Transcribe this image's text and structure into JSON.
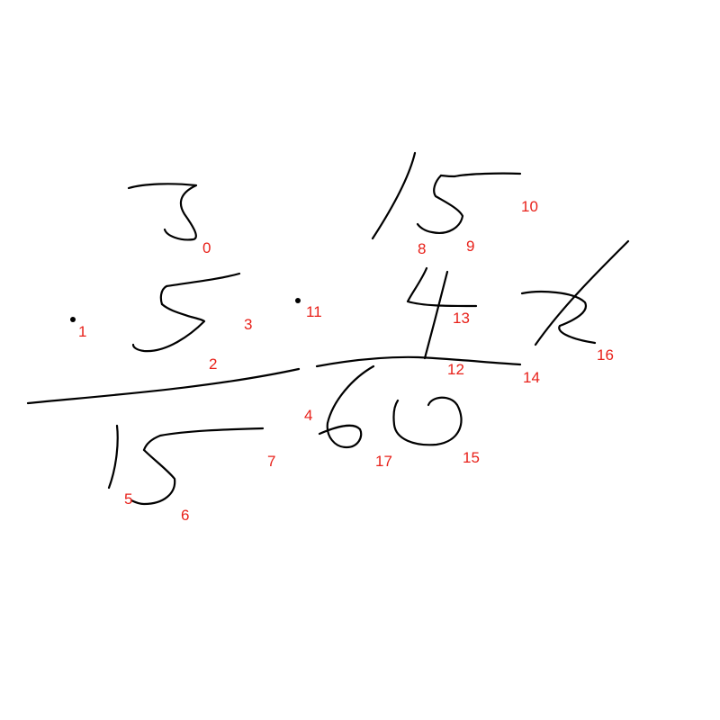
{
  "colors": {
    "ink": "#000000",
    "label": "#e8211a",
    "background": "#ffffff"
  },
  "stroke_labels": [
    "0",
    "1",
    "2",
    "3",
    "4",
    "5",
    "6",
    "7",
    "8",
    "9",
    "10",
    "11",
    "12",
    "13",
    "14",
    "15",
    "16",
    "17"
  ]
}
